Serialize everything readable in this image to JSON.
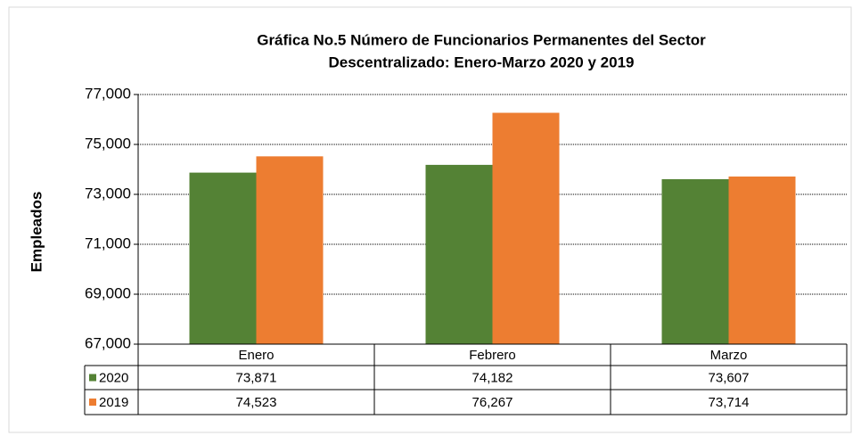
{
  "chart_data": {
    "type": "bar",
    "title": [
      "Gráfica No.5 Número de Funcionarios Permanentes del Sector",
      "Descentralizado: Enero-Marzo 2020 y 2019"
    ],
    "y_label": "Empleados",
    "categories": [
      "Enero",
      "Febrero",
      "Marzo"
    ],
    "series": [
      {
        "name": "2020",
        "color": "#548235",
        "values": [
          73871,
          74182,
          73607
        ],
        "value_labels": [
          "73,871",
          "74,182",
          "73,607"
        ]
      },
      {
        "name": "2019",
        "color": "#ed7d31",
        "values": [
          74523,
          76267,
          73714
        ],
        "value_labels": [
          "74,523",
          "76,267",
          "73,714"
        ]
      }
    ],
    "ylim": [
      67000,
      77000
    ],
    "yticks": [
      {
        "value": 67000,
        "label": "67,000"
      },
      {
        "value": 69000,
        "label": "69,000"
      },
      {
        "value": 71000,
        "label": "71,000"
      },
      {
        "value": 73000,
        "label": "73,000"
      },
      {
        "value": 75000,
        "label": "75,000"
      },
      {
        "value": 77000,
        "label": "77,000"
      }
    ],
    "grid": true
  }
}
